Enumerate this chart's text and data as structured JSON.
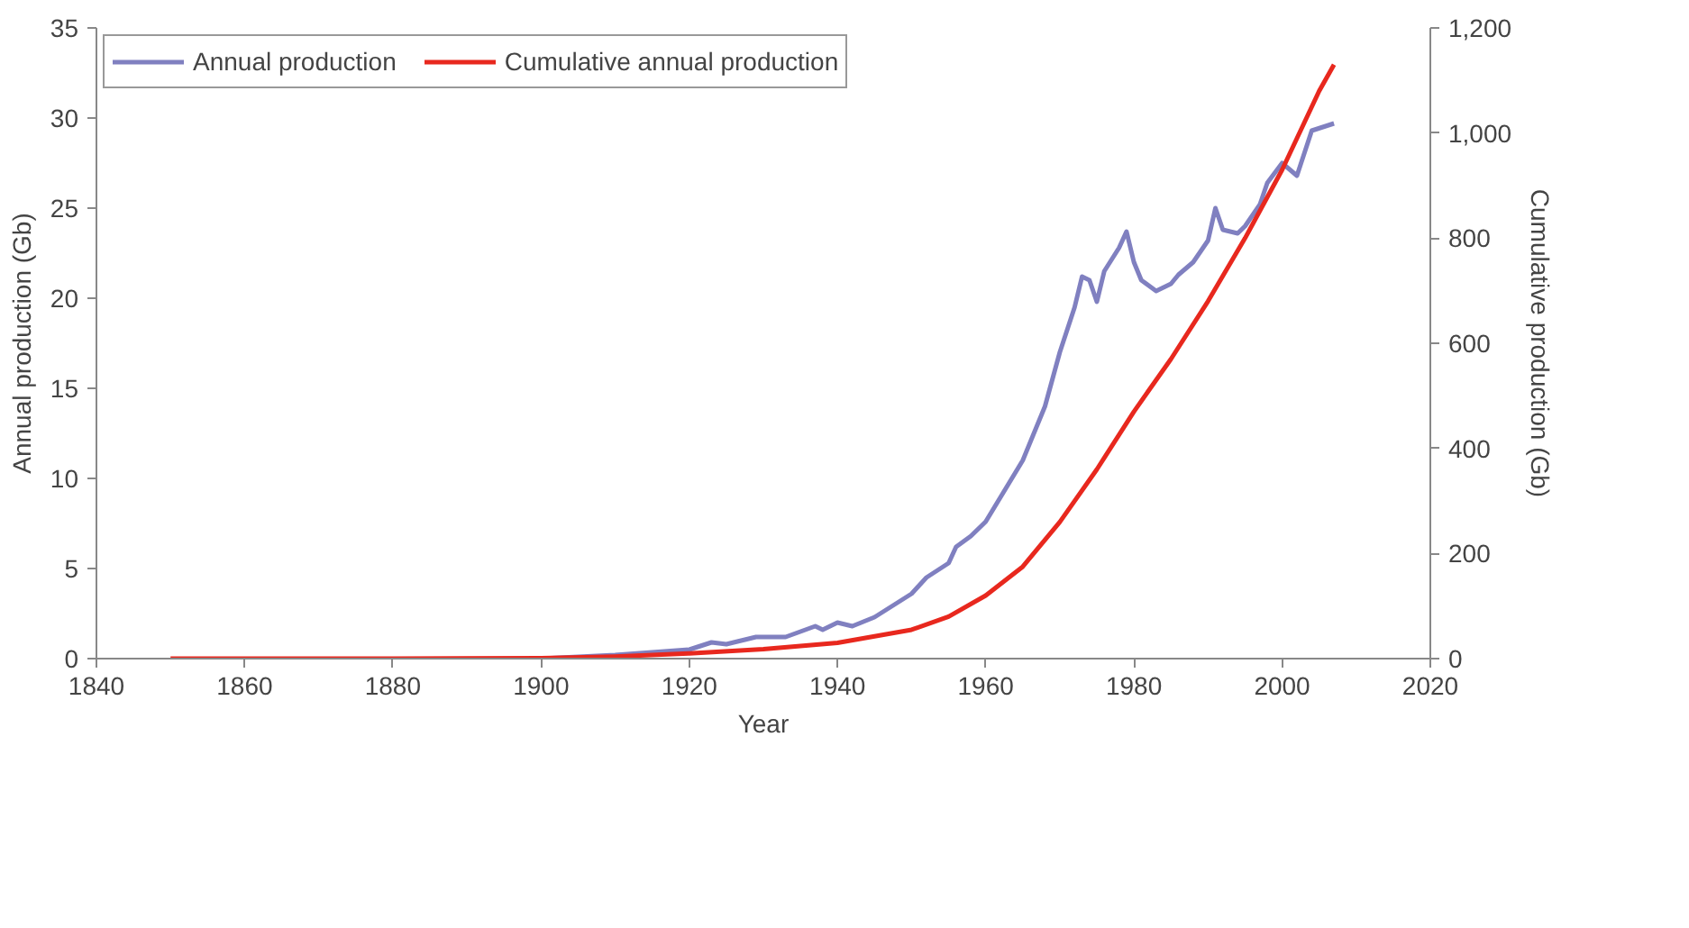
{
  "chart_data": {
    "type": "line",
    "xlabel": "Year",
    "ylabel": "Annual production (Gb)",
    "y2label": "Cumulative production (Gb)",
    "xlim": [
      1840,
      2020
    ],
    "xticks": [
      1840,
      1860,
      1880,
      1900,
      1920,
      1940,
      1960,
      1980,
      2000,
      2020
    ],
    "ylim": [
      0,
      35
    ],
    "yticks": [
      0,
      5,
      10,
      15,
      20,
      25,
      30,
      35
    ],
    "y2lim": [
      0,
      1200
    ],
    "y2ticks": [
      0,
      {
        "value": 200,
        "label": "200"
      },
      {
        "value": 400,
        "label": "400"
      },
      {
        "value": 600,
        "label": "600"
      },
      {
        "value": 800,
        "label": "800"
      },
      {
        "value": 1000,
        "label": "1,000"
      },
      {
        "value": 1200,
        "label": "1,200"
      }
    ],
    "grid": false,
    "legend": "top left",
    "line_style": "solid",
    "marker": "none",
    "series": [
      {
        "name": "Annual production",
        "color": "#8080c0",
        "x": [
          1900,
          1910,
          1920,
          1923,
          1925,
          1929,
          1933,
          1937,
          1938,
          1940,
          1942,
          1945,
          1950,
          1952,
          1955,
          1956,
          1958,
          1960,
          1965,
          1968,
          1970,
          1972,
          1973,
          1974,
          1975,
          1976,
          1978,
          1979,
          1980,
          1981,
          1983,
          1985,
          1986,
          1988,
          1989,
          1990,
          1991,
          1992,
          1994,
          1995,
          1997,
          1998,
          2000,
          2002,
          2004,
          2007
        ],
        "values": [
          0,
          0.2,
          0.5,
          0.9,
          0.8,
          1.2,
          1.2,
          1.8,
          1.6,
          2.0,
          1.8,
          2.3,
          3.6,
          4.5,
          5.3,
          6.2,
          6.8,
          7.6,
          11,
          14,
          17,
          19.5,
          21.2,
          21.0,
          19.8,
          21.5,
          22.8,
          23.7,
          22,
          21,
          20.4,
          20.8,
          21.3,
          22,
          22.6,
          23.2,
          25.0,
          23.8,
          23.6,
          24,
          25.2,
          26.4,
          27.5,
          26.8,
          29.3,
          29.7
        ]
      },
      {
        "name": "Cumulative annual production",
        "color": "#e8281e",
        "axis": "y2",
        "x": [
          1850,
          1880,
          1900,
          1910,
          1920,
          1930,
          1940,
          1950,
          1955,
          1960,
          1965,
          1970,
          1975,
          1980,
          1985,
          1990,
          1995,
          2000,
          2005,
          2007
        ],
        "values": [
          0,
          0,
          1,
          4,
          10,
          18,
          30,
          55,
          80,
          120,
          175,
          260,
          360,
          470,
          570,
          680,
          800,
          930,
          1080,
          1130
        ]
      }
    ]
  }
}
